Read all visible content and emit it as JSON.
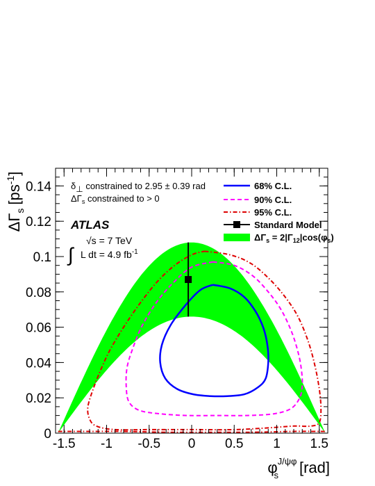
{
  "chart_data": {
    "type": "line",
    "experiment": "ATLAS",
    "xlabel": {
      "symbol": "φ",
      "sub": "s",
      "sup": "J/ψφ",
      "unit": "[rad]"
    },
    "ylabel": {
      "symbol": "ΔΓ",
      "sub": "s",
      "unit": "[ps",
      "unit_sup": "-1",
      "unit_close": "]"
    },
    "xlim": [
      -1.6,
      1.6
    ],
    "ylim": [
      0,
      0.15
    ],
    "xticks": [
      -1.5,
      -1,
      -0.5,
      0,
      0.5,
      1,
      1.5
    ],
    "xtick_labels": [
      "-1.5",
      "-1",
      "-0.5",
      "0",
      "0.5",
      "1",
      "1.5"
    ],
    "yticks": [
      0,
      0.02,
      0.04,
      0.06,
      0.08,
      0.1,
      0.12,
      0.14
    ],
    "ytick_labels": [
      "0",
      "0.02",
      "0.04",
      "0.06",
      "0.08",
      "0.1",
      "0.12",
      "0.14"
    ],
    "annotations": {
      "constraint1_pre": "δ",
      "constraint1_sub": "⊥",
      "constraint1_post": " constrained to 2.95 ± 0.39 rad",
      "constraint2_pre": "ΔΓ",
      "constraint2_sub": "s",
      "constraint2_post": " constrained to > 0",
      "sqrt_s": "√s = 7 TeV",
      "lumi_integral": "∫",
      "lumi": "L dt = 4.9 fb",
      "lumi_sup": "-1"
    },
    "legend": {
      "placement": "top-right",
      "cl68": "68% C.L.",
      "cl90": "90% C.L.",
      "cl95": "95% C.L.",
      "sm": "Standard Model",
      "band_pre": "ΔΓ",
      "band_sub1": "s",
      "band_mid": " = 2|Γ",
      "band_sub2": "12",
      "band_post": "|cos(φ",
      "band_sub3": "s",
      "band_close": ")"
    },
    "colors": {
      "cl68": "#0000ff",
      "cl90": "#ff00ff",
      "cl95": "#dd0000",
      "band": "#00ff00",
      "sm": "#000000"
    },
    "band": {
      "description_formula": "2|Γ12|cos(φs)",
      "center_at_0": 0.087,
      "upper_at_0": 0.108,
      "lower_at_0": 0.066
    },
    "standard_model": {
      "x": -0.04,
      "y": 0.087,
      "y_err_low": 0.021,
      "y_err_high": 0.021
    },
    "series": [
      {
        "name": "68% C.L.",
        "style": "solid",
        "x": [
          0.25,
          0.45,
          0.62,
          0.75,
          0.84,
          0.89,
          0.9,
          0.87,
          0.78,
          0.62,
          0.42,
          0.22,
          0.02,
          -0.17,
          -0.31,
          -0.37,
          -0.35,
          -0.25,
          -0.08,
          0.1,
          0.25
        ],
        "y": [
          0.084,
          0.082,
          0.077,
          0.069,
          0.06,
          0.05,
          0.04,
          0.031,
          0.026,
          0.022,
          0.021,
          0.021,
          0.022,
          0.025,
          0.031,
          0.04,
          0.05,
          0.061,
          0.072,
          0.081,
          0.084
        ]
      },
      {
        "name": "90% C.L.",
        "style": "dashed",
        "x": [
          0.25,
          0.5,
          0.72,
          0.9,
          1.05,
          1.17,
          1.25,
          1.29,
          1.3,
          1.27,
          1.17,
          0.97,
          0.65,
          0.3,
          -0.05,
          -0.38,
          -0.62,
          -0.74,
          -0.77,
          -0.76,
          -0.7,
          -0.58,
          -0.4,
          -0.2,
          0.0,
          0.25
        ],
        "y": [
          0.097,
          0.095,
          0.089,
          0.08,
          0.07,
          0.058,
          0.046,
          0.036,
          0.027,
          0.02,
          0.014,
          0.011,
          0.01,
          0.01,
          0.01,
          0.011,
          0.013,
          0.018,
          0.027,
          0.037,
          0.047,
          0.061,
          0.075,
          0.086,
          0.094,
          0.097
        ]
      },
      {
        "name": "95% C.L.",
        "style": "dashdot",
        "x": [
          0.15,
          0.45,
          0.7,
          0.92,
          1.1,
          1.25,
          1.37,
          1.45,
          1.5,
          1.52,
          1.5,
          1.4,
          1.2,
          0.9,
          0.5,
          0.0,
          -0.5,
          -0.9,
          -1.12,
          -1.2,
          -1.22,
          -1.15,
          -1.05,
          -0.95,
          -0.8,
          -0.6,
          -0.4,
          -0.2,
          0.0,
          0.15
        ],
        "y": [
          0.103,
          0.101,
          0.096,
          0.087,
          0.077,
          0.066,
          0.052,
          0.038,
          0.025,
          0.014,
          0.006,
          0.004,
          0.004,
          0.003,
          0.002,
          0.002,
          0.002,
          0.002,
          0.004,
          0.008,
          0.015,
          0.026,
          0.038,
          0.048,
          0.06,
          0.074,
          0.086,
          0.095,
          0.101,
          0.103
        ]
      },
      {
        "name": "95% C.L. lower branch",
        "style": "dashdot",
        "x": [
          -1.57,
          -1.2,
          -0.8,
          -0.3,
          0.2,
          0.7,
          1.2,
          1.45,
          1.57
        ],
        "y": [
          0.001,
          0.001,
          0.001,
          0.0005,
          0.0005,
          0.0005,
          0.001,
          0.001,
          0.001
        ]
      }
    ]
  }
}
